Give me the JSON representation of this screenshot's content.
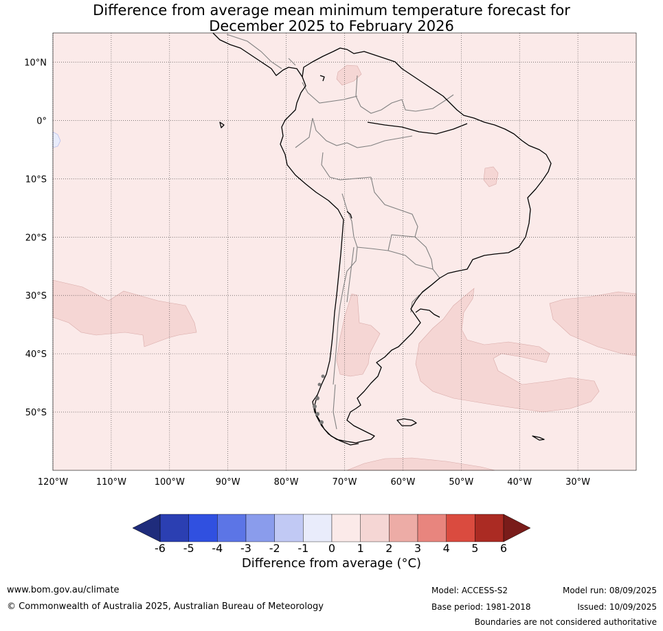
{
  "title_line1": "Difference from average mean minimum temperature forecast for",
  "title_line2": "December 2025 to February 2026",
  "map": {
    "projection": "equirectangular",
    "lon_range": [
      -120,
      -20
    ],
    "lat_range": [
      -60,
      15
    ],
    "lat_ticks": [
      {
        "value": 10,
        "label": "10°N"
      },
      {
        "value": 0,
        "label": "0°"
      },
      {
        "value": -10,
        "label": "10°S"
      },
      {
        "value": -20,
        "label": "20°S"
      },
      {
        "value": -30,
        "label": "30°S"
      },
      {
        "value": -40,
        "label": "40°S"
      },
      {
        "value": -50,
        "label": "50°S"
      }
    ],
    "lon_ticks": [
      {
        "value": -120,
        "label": "120°W"
      },
      {
        "value": -110,
        "label": "110°W"
      },
      {
        "value": -100,
        "label": "100°W"
      },
      {
        "value": -90,
        "label": "90°W"
      },
      {
        "value": -80,
        "label": "80°W"
      },
      {
        "value": -70,
        "label": "70°W"
      },
      {
        "value": -60,
        "label": "60°W"
      },
      {
        "value": -50,
        "label": "50°W"
      },
      {
        "value": -40,
        "label": "40°W"
      },
      {
        "value": -30,
        "label": "30°W"
      }
    ],
    "background_anomaly_class": "0 to 1",
    "background_color": "#fbeae9",
    "anomaly_1_to_2_color": "#f5d6d4",
    "anomaly_minus1_to_0_color": "#e9ecfb",
    "region": "South America"
  },
  "colorbar": {
    "ticks": [
      "-6",
      "-5",
      "-4",
      "-3",
      "-2",
      "-1",
      "0",
      "1",
      "2",
      "3",
      "4",
      "5",
      "6"
    ],
    "colors": [
      "#2b3fb2",
      "#3050e0",
      "#5c75e6",
      "#8a9cec",
      "#c1c9f4",
      "#e9ecfb",
      "#fbeae9",
      "#f5d6d4",
      "#edaca6",
      "#e8857e",
      "#da4b3f",
      "#ab2b23"
    ],
    "under_color": "#1f2c7c",
    "over_color": "#791c1a",
    "label": "Difference from average (°C)"
  },
  "footer": {
    "url": "www.bom.gov.au/climate",
    "copyright": "© Commonwealth of Australia 2025, Australian Bureau of Meteorology",
    "model": "Model: ACCESS-S2",
    "base_period": "Base period: 1981-2018",
    "model_run": "Model run: 08/09/2025",
    "issued": "Issued: 10/09/2025",
    "disclaimer": "Boundaries are not considered authoritative"
  }
}
